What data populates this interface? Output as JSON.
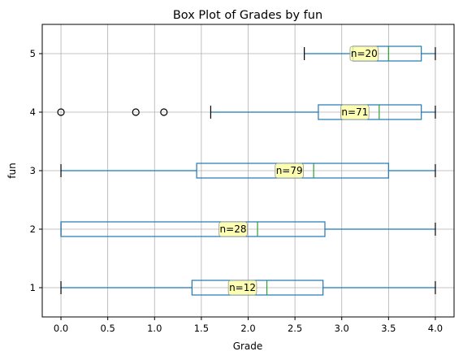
{
  "chart_data": {
    "type": "box",
    "title": "Box Plot of Grades by fun",
    "xlabel": "Grade",
    "ylabel": "fun",
    "xlim": [
      -0.2,
      4.2
    ],
    "ylim": [
      0.5,
      5.5
    ],
    "x_ticks": [
      "0.0",
      "0.5",
      "1.0",
      "1.5",
      "2.0",
      "2.5",
      "3.0",
      "3.5",
      "4.0"
    ],
    "x_tick_values": [
      0,
      0.5,
      1.0,
      1.5,
      2.0,
      2.5,
      3.0,
      3.5,
      4.0
    ],
    "grid": true,
    "colors": {
      "box": "#1f77b4",
      "median": "#2ca02c",
      "whisker_cap": "#000000",
      "annotation_fill": "#ffff99",
      "annotation_edge": "#999999"
    },
    "categories": [
      "1",
      "2",
      "3",
      "4",
      "5"
    ],
    "boxes": [
      {
        "category": "1",
        "whisker_low": 0.0,
        "q1": 1.4,
        "median": 2.2,
        "q3": 2.8,
        "whisker_high": 4.0,
        "outliers": [],
        "n_label": "n=12"
      },
      {
        "category": "2",
        "whisker_low": 0.0,
        "q1": 0.0,
        "median": 2.1,
        "q3": 2.82,
        "whisker_high": 4.0,
        "outliers": [],
        "n_label": "n=28"
      },
      {
        "category": "3",
        "whisker_low": 0.0,
        "q1": 1.45,
        "median": 2.7,
        "q3": 3.5,
        "whisker_high": 4.0,
        "outliers": [],
        "n_label": "n=79"
      },
      {
        "category": "4",
        "whisker_low": 1.6,
        "q1": 2.75,
        "median": 3.4,
        "q3": 3.85,
        "whisker_high": 4.0,
        "outliers": [
          0.0,
          0.8,
          1.1
        ],
        "n_label": "n=71"
      },
      {
        "category": "5",
        "whisker_low": 2.6,
        "q1": 3.12,
        "median": 3.5,
        "q3": 3.85,
        "whisker_high": 4.0,
        "outliers": [],
        "n_label": "n=20"
      }
    ]
  }
}
